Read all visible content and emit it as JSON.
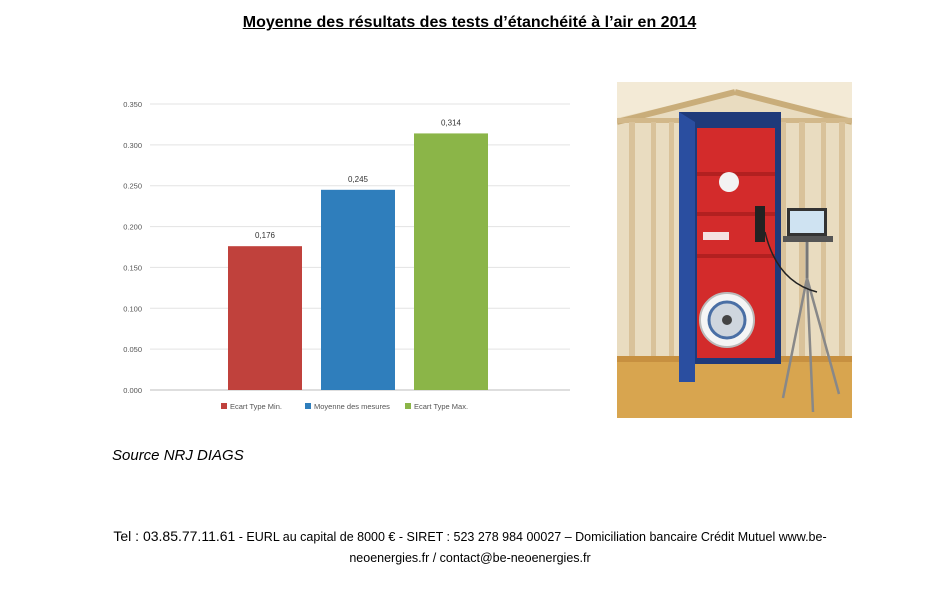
{
  "title": "Moyenne des résultats des tests d’étanchéité à l’air en 2014",
  "chart_data": {
    "type": "bar",
    "categories": [
      "Ecart Type Min.",
      "Moyenne des mesures",
      "Ecart Type Max."
    ],
    "values": [
      0.176,
      0.245,
      0.314
    ],
    "value_labels": [
      "0,176",
      "0,245",
      "0,314"
    ],
    "colors": [
      "#c0413c",
      "#2f7ebc",
      "#8bb548"
    ],
    "ylim": [
      0,
      0.35
    ],
    "yticks": [
      "0.000",
      "0.050",
      "0.100",
      "0.150",
      "0.200",
      "0.250",
      "0.300",
      "0.350"
    ],
    "grid": true,
    "legend": "bottom"
  },
  "source": "Source NRJ DIAGS",
  "footer": {
    "tel": "Tel : 03.85.77.11.61",
    "line1_rest": " - EURL au capital de 8000 € - SIRET : 523 278 984 00027 – Domiciliation bancaire Crédit Mutuel www.be-",
    "line2": "neoenergies.fr / contact@be-neoenergies.fr"
  }
}
